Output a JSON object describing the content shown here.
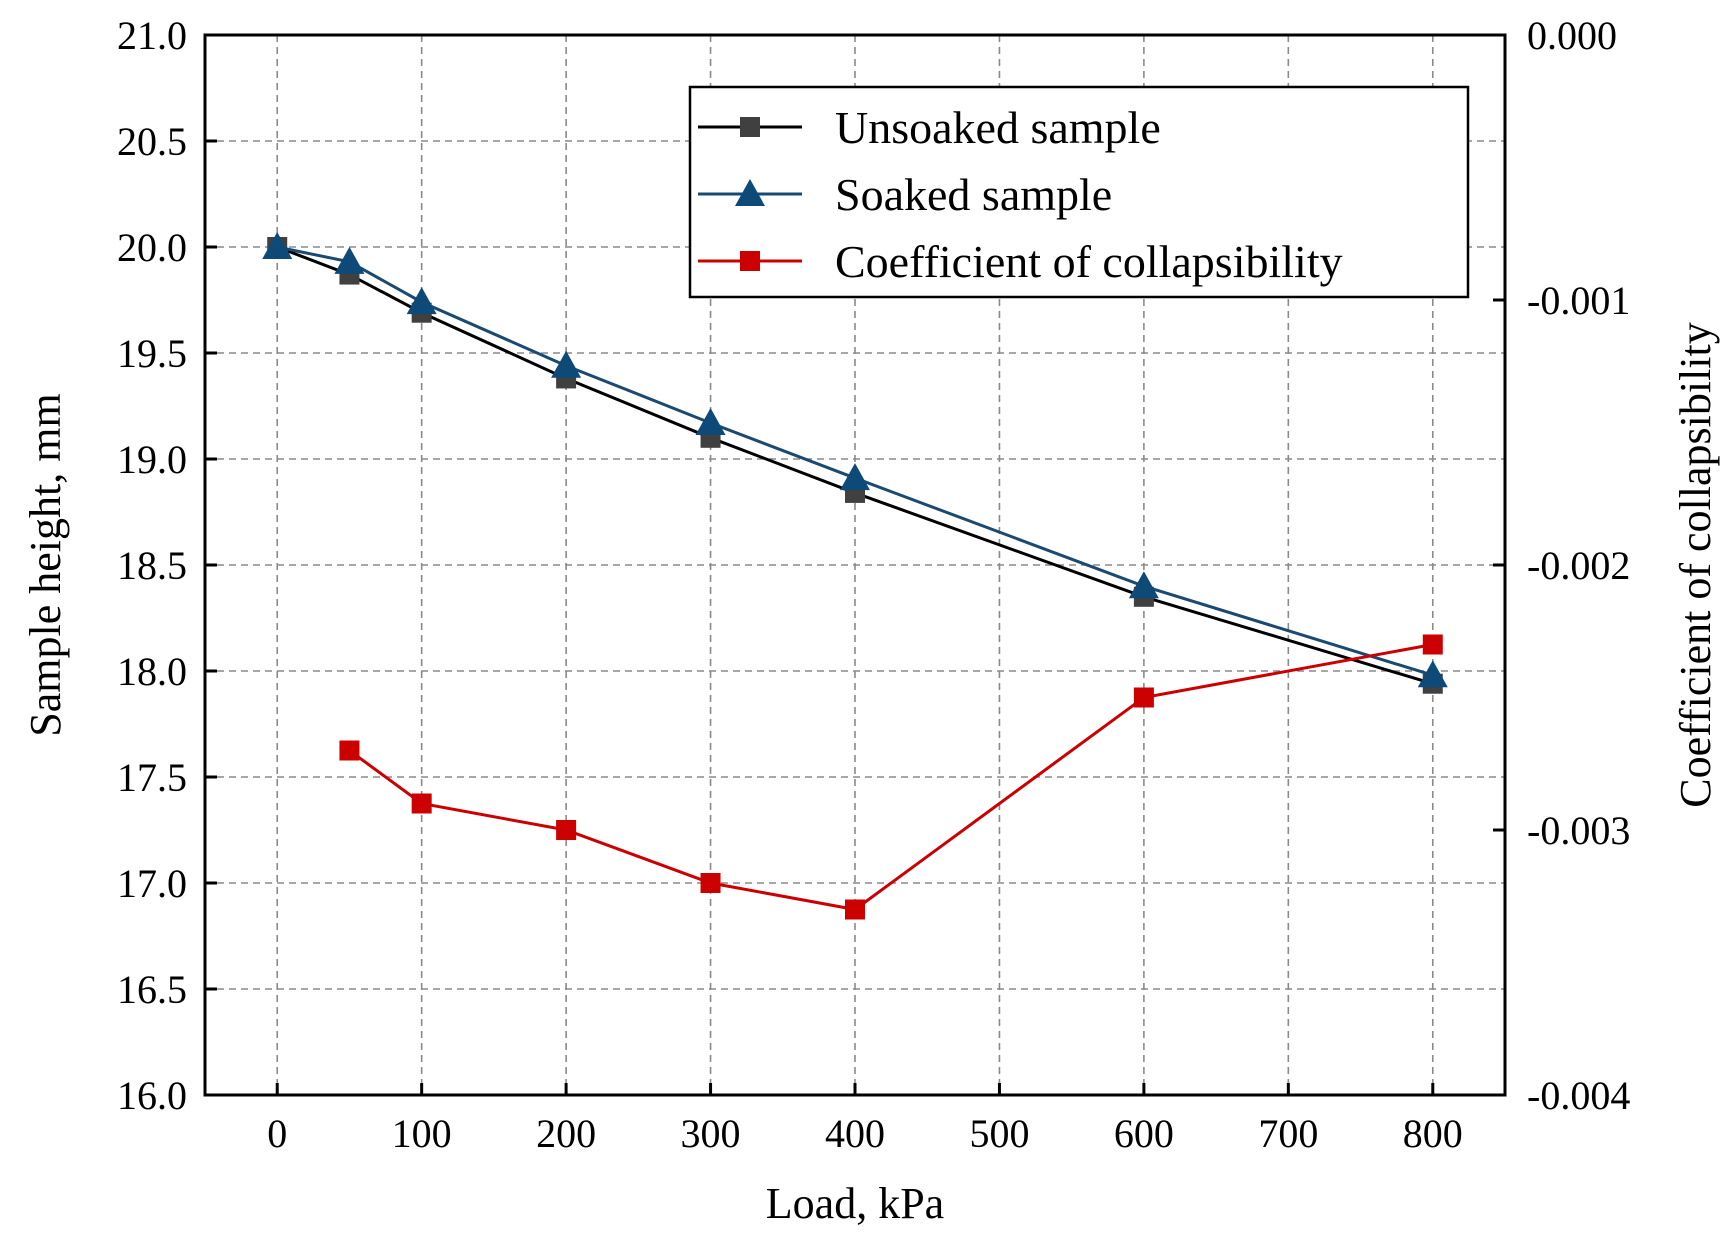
{
  "chart_data": {
    "type": "line",
    "title": "",
    "xlabel": "Load, kPa",
    "ylabel": "Sample height, mm",
    "y2label": "Coefficient of collapsibility",
    "xlim": [
      -50,
      850
    ],
    "ylim": [
      16.0,
      21.0
    ],
    "y2lim": [
      -0.004,
      0.0
    ],
    "xticks": [
      "0",
      "100",
      "200",
      "300",
      "400",
      "500",
      "600",
      "700",
      "800"
    ],
    "xtick_values": [
      0,
      100,
      200,
      300,
      400,
      500,
      600,
      700,
      800
    ],
    "yticks": [
      "16.0",
      "16.5",
      "17.0",
      "17.5",
      "18.0",
      "18.5",
      "19.0",
      "19.5",
      "20.0",
      "20.5",
      "21.0"
    ],
    "ytick_values": [
      16.0,
      16.5,
      17.0,
      17.5,
      18.0,
      18.5,
      19.0,
      19.5,
      20.0,
      20.5,
      21.0
    ],
    "y2ticks": [
      "-0.004",
      "-0.003",
      "-0.002",
      "-0.001",
      "0.000"
    ],
    "y2tick_values": [
      -0.004,
      -0.003,
      -0.002,
      -0.001,
      0.0
    ],
    "grid": true,
    "legend_position": "top-right",
    "series": [
      {
        "name": "Unsoaked sample",
        "axis": "left",
        "marker": "square",
        "color": "#000000",
        "marker_color": "#404040",
        "x": [
          0,
          50,
          100,
          200,
          300,
          400,
          600,
          800
        ],
        "values": [
          20.0,
          19.87,
          19.69,
          19.38,
          19.1,
          18.84,
          18.35,
          17.94
        ]
      },
      {
        "name": "Soaked sample",
        "axis": "left",
        "marker": "triangle",
        "color": "#1a4a72",
        "marker_color": "#0e4a78",
        "x": [
          0,
          50,
          100,
          200,
          300,
          400,
          600,
          800
        ],
        "values": [
          20.0,
          19.93,
          19.74,
          19.44,
          19.17,
          18.91,
          18.4,
          17.98
        ]
      },
      {
        "name": "Coefficient of collapsibility",
        "axis": "right",
        "marker": "square",
        "color": "#cc0000",
        "marker_color": "#cc0000",
        "x": [
          50,
          100,
          200,
          300,
          400,
          600,
          800
        ],
        "values": [
          -0.0027,
          -0.0029,
          -0.003,
          -0.0032,
          -0.0033,
          -0.0025,
          -0.0023
        ]
      }
    ]
  }
}
